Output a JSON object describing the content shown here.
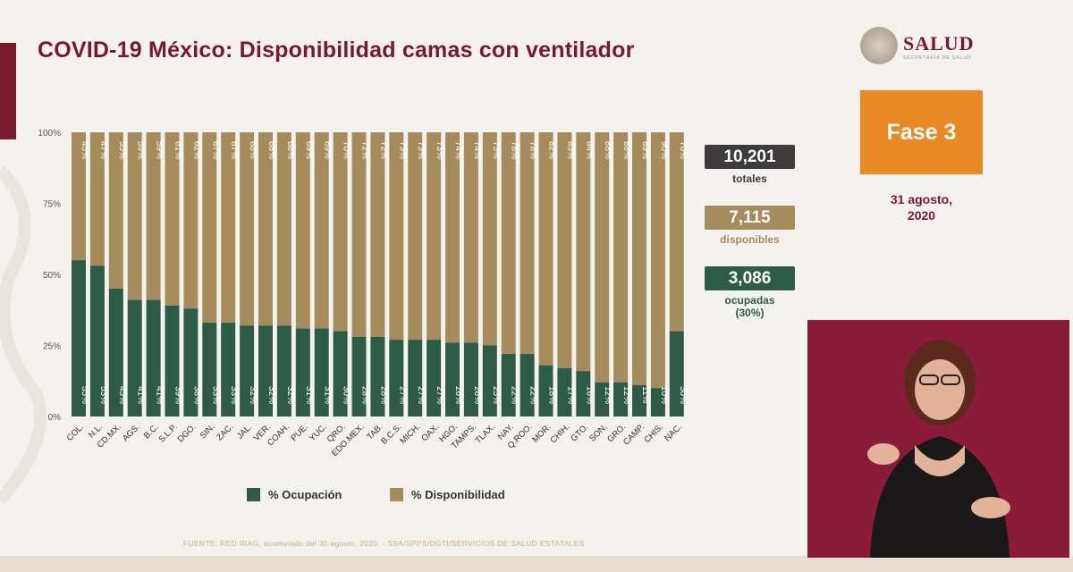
{
  "header": {
    "title": "COVID-19 México: Disponibilidad camas con ventilador"
  },
  "brand": {
    "name": "SALUD",
    "subtitle": "SECRETARÍA DE SALUD"
  },
  "phase": {
    "label": "Fase 3"
  },
  "date": {
    "line1": "31 agosto,",
    "line2": "2020"
  },
  "stats": {
    "total": {
      "value": "10,201",
      "label": "totales"
    },
    "available": {
      "value": "7,115",
      "label": "disponibles"
    },
    "occupied": {
      "value": "3,086",
      "label1": "ocupadas",
      "label2": "(30%)"
    }
  },
  "source": "FUENTE: RED IRAG, acumulado del 30 agosto, 2020. -  SSA/SPPS/DGTI/SERVICIOS DE SALUD ESTATALES",
  "colors": {
    "occupied": "#2e5b48",
    "available": "#a68b5c",
    "brand": "#7a1830",
    "phase": "#e98a25",
    "dark_box": "#3d3b3b"
  },
  "chart_data": {
    "type": "bar",
    "stacked": true,
    "title": "COVID-19 México: Disponibilidad camas con ventilador",
    "categories": [
      "COL.",
      "N.L.",
      "CD.MX.",
      "AGS.",
      "B.C.",
      "S.L.P.",
      "DGO.",
      "SIN.",
      "ZAC.",
      "JAL.",
      "VER.",
      "COAH.",
      "PUE.",
      "YUC.",
      "QRO.",
      "EDO.MEX.",
      "TAB.",
      "B.C.S.",
      "MICH.",
      "OAX.",
      "HGO.",
      "TAMPS.",
      "TLAX.",
      "NAY.",
      "Q.ROO.",
      "MOR.",
      "CHIH.",
      "GTO.",
      "SON.",
      "GRO.",
      "CAMP.",
      "CHIS.",
      "NAC."
    ],
    "series": [
      {
        "name": "% Ocupación",
        "values": [
          55,
          53,
          45,
          41,
          41,
          39,
          38,
          33,
          33,
          32,
          32,
          32,
          31,
          31,
          30,
          28,
          28,
          27,
          27,
          27,
          26,
          26,
          25,
          22,
          22,
          18,
          17,
          16,
          12,
          12,
          11,
          10,
          30
        ]
      },
      {
        "name": "% Disponibilidad",
        "values": [
          45,
          47,
          55,
          59,
          59,
          61,
          62,
          67,
          67,
          68,
          68,
          68,
          69,
          69,
          70,
          72,
          72,
          73,
          73,
          73,
          74,
          74,
          75,
          78,
          78,
          82,
          83,
          84,
          88,
          88,
          89,
          90,
          70
        ]
      }
    ],
    "yticks": [
      "0%",
      "25%",
      "50%",
      "75%",
      "100%"
    ],
    "ylim": [
      0,
      100
    ],
    "legend_position": "bottom"
  }
}
